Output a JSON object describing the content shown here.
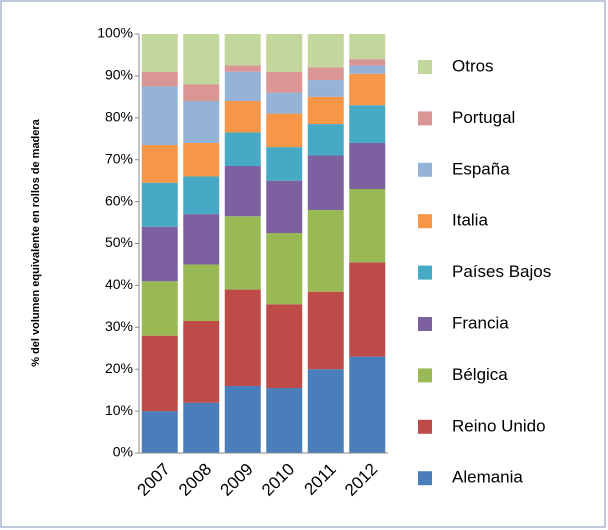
{
  "chart_data": {
    "type": "stacked_bar",
    "y_label": "% del volumen equivalente en rollos de madera",
    "categories": [
      "2007",
      "2008",
      "2009",
      "2010",
      "2011",
      "2012"
    ],
    "series": [
      {
        "name": "Alemania",
        "color": "#4a7ebb",
        "values": [
          10,
          12,
          16,
          15.5,
          20,
          23
        ]
      },
      {
        "name": "Reino Unido",
        "color": "#be4b48",
        "values": [
          18,
          19.5,
          23,
          20,
          18.5,
          22.5
        ]
      },
      {
        "name": "Bélgica",
        "color": "#98b954",
        "values": [
          13,
          13.5,
          17.5,
          17,
          19.5,
          17.5
        ]
      },
      {
        "name": "Francia",
        "color": "#7d60a0",
        "values": [
          13,
          12,
          12,
          12.5,
          13,
          11
        ]
      },
      {
        "name": "Países Bajos",
        "color": "#46aac5",
        "values": [
          10.5,
          9,
          8,
          8,
          7.5,
          9
        ]
      },
      {
        "name": "Italia",
        "color": "#f79646",
        "values": [
          9,
          8,
          7.5,
          8,
          6.5,
          7.5
        ]
      },
      {
        "name": "España",
        "color": "#95b3d7",
        "values": [
          14,
          10,
          7,
          5,
          4,
          2
        ]
      },
      {
        "name": "Portugal",
        "color": "#d99694",
        "values": [
          3.5,
          4,
          1.5,
          5,
          3,
          1.5
        ]
      },
      {
        "name": "Otros",
        "color": "#c3d69b",
        "values": [
          9,
          12,
          7.5,
          9,
          8,
          6
        ]
      }
    ],
    "ylim": [
      0,
      100
    ],
    "yticks": [
      {
        "value": 0,
        "label": "0%"
      },
      {
        "value": 10,
        "label": "10%"
      },
      {
        "value": 20,
        "label": "20%"
      },
      {
        "value": 30,
        "label": "30%"
      },
      {
        "value": 40,
        "label": "40%"
      },
      {
        "value": 50,
        "label": "50%"
      },
      {
        "value": 60,
        "label": "60%"
      },
      {
        "value": 70,
        "label": "70%"
      },
      {
        "value": 80,
        "label": "80%"
      },
      {
        "value": 90,
        "label": "90%"
      },
      {
        "value": 100,
        "label": "100%"
      }
    ],
    "legend": "right"
  }
}
